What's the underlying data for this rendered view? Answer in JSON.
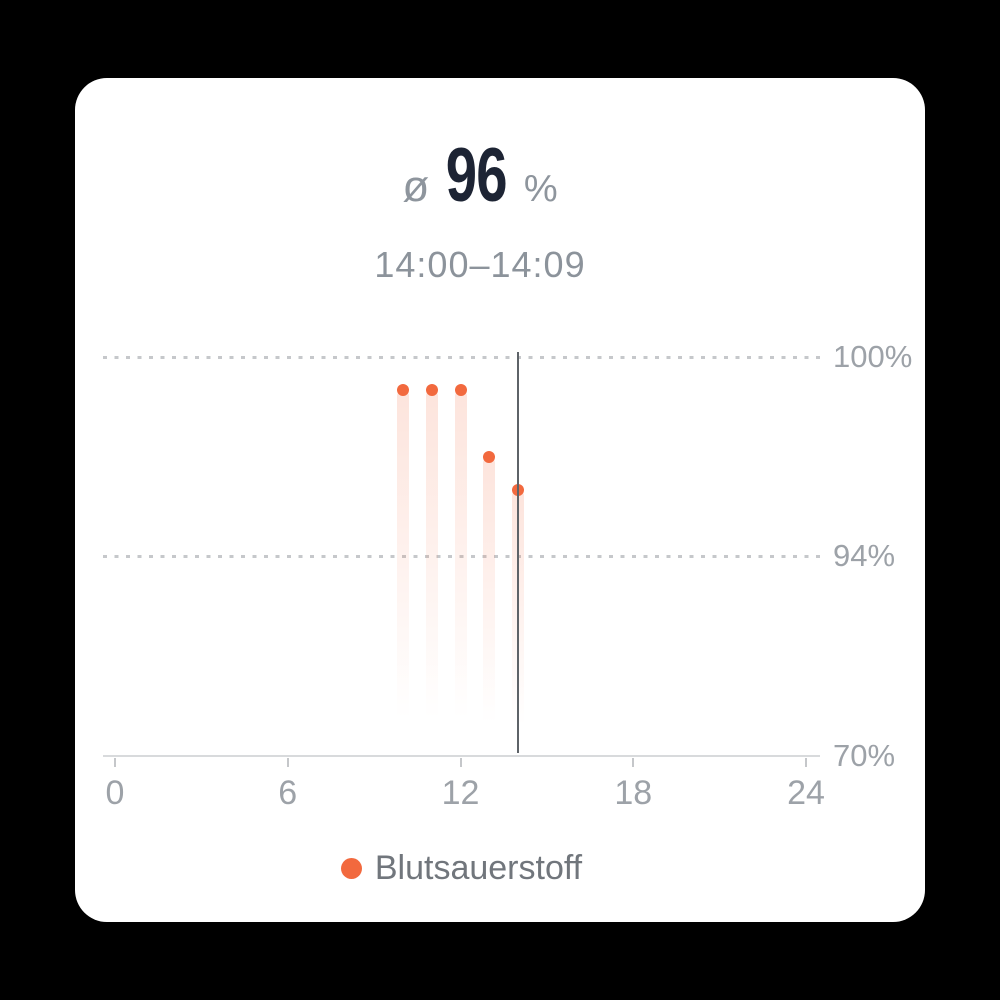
{
  "colors": {
    "accent": "#F2693E",
    "title_value": "#1D2434",
    "muted_text": "#8E959D",
    "axis_text": "#9DA2A8",
    "legend_text": "#71767C",
    "selection_line": "#5E6368",
    "card_background": "#FFFFFF",
    "page_background": "#000000"
  },
  "header": {
    "average_symbol": "ø",
    "average_value": "96",
    "unit": "%",
    "time_range": "14:00–14:09"
  },
  "chart_data": {
    "type": "scatter",
    "title": "",
    "xlabel": "",
    "ylabel": "",
    "xlim": [
      0,
      24
    ],
    "ylim": [
      70,
      100
    ],
    "x_ticks": [
      0,
      6,
      12,
      18,
      24
    ],
    "x_tick_labels": [
      "0",
      "6",
      "12",
      "18",
      "24"
    ],
    "y_tick_values": [
      100,
      94,
      70
    ],
    "y_tick_labels": [
      "100%",
      "94%",
      "70%"
    ],
    "y_gridlines": [
      100,
      94
    ],
    "grid": "dotted-horizontal",
    "legend_position": "bottom",
    "selected_hour": 14,
    "selected_range_label": "14:00–14:09",
    "selected_value": 96,
    "average": 96,
    "series": [
      {
        "name": "Blutsauerstoff",
        "color": "#F2693E",
        "points": [
          {
            "hour": 10,
            "value": 99
          },
          {
            "hour": 11,
            "value": 99
          },
          {
            "hour": 12,
            "value": 99
          },
          {
            "hour": 13,
            "value": 97
          },
          {
            "hour": 14,
            "value": 96
          }
        ]
      }
    ]
  },
  "legend": {
    "label": "Blutsauerstoff"
  }
}
